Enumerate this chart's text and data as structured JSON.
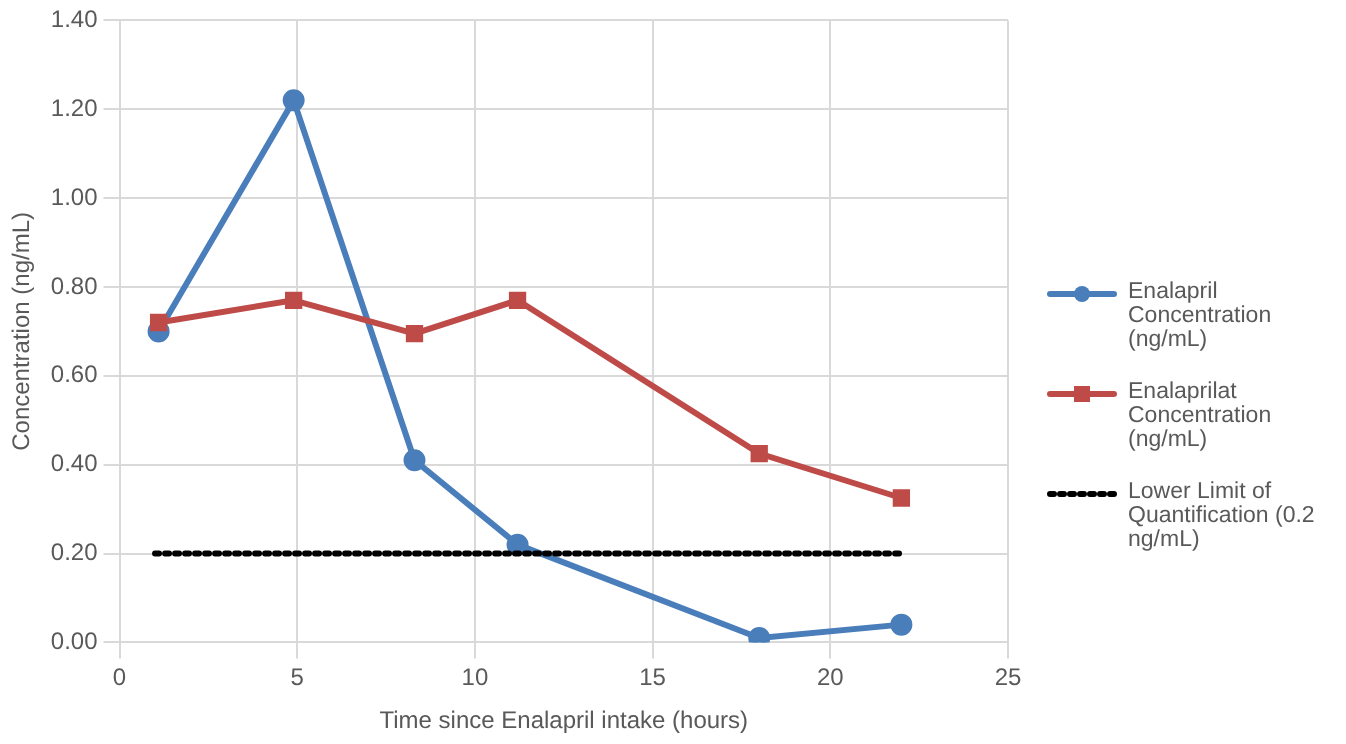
{
  "chart_data": {
    "type": "line",
    "xlabel": "Time since Enalapril intake (hours)",
    "ylabel": "Concentration (ng/mL)",
    "xlim": [
      0,
      25
    ],
    "xticks": [
      0,
      5,
      10,
      15,
      20,
      25
    ],
    "ylim": [
      0,
      1.4
    ],
    "yticks": [
      {
        "value": 0,
        "label": "0.00"
      },
      {
        "value": 0.2,
        "label": "0.20"
      },
      {
        "value": 0.4,
        "label": "0.40"
      },
      {
        "value": 0.6,
        "label": "0.60"
      },
      {
        "value": 0.8,
        "label": "0.80"
      },
      {
        "value": 1,
        "label": "1.00"
      },
      {
        "value": 1.2,
        "label": "1.20"
      },
      {
        "value": 1.4,
        "label": "1.40"
      }
    ],
    "grid": true,
    "legend": "right",
    "series": [
      {
        "name": "Enalapril Concentration (ng/mL)",
        "color": "#4a7ebb",
        "marker": "circle",
        "line_style": "solid",
        "x": [
          1.1,
          4.9,
          8.3,
          11.2,
          18,
          22
        ],
        "values": [
          0.7,
          1.22,
          0.41,
          0.22,
          0.01,
          0.04
        ]
      },
      {
        "name": "Enalaprilat Concentration (ng/mL)",
        "color": "#be4b48",
        "marker": "square",
        "line_style": "solid",
        "x": [
          1.1,
          4.9,
          8.3,
          11.2,
          18,
          22
        ],
        "values": [
          0.72,
          0.77,
          0.695,
          0.77,
          0.425,
          0.325
        ]
      },
      {
        "name": "Lower Limit of Quantification (0.2 ng/mL)",
        "color": "#000000",
        "marker": "none",
        "line_style": "dotted",
        "x": [
          1,
          22
        ],
        "values": [
          0.2,
          0.2
        ]
      }
    ]
  }
}
